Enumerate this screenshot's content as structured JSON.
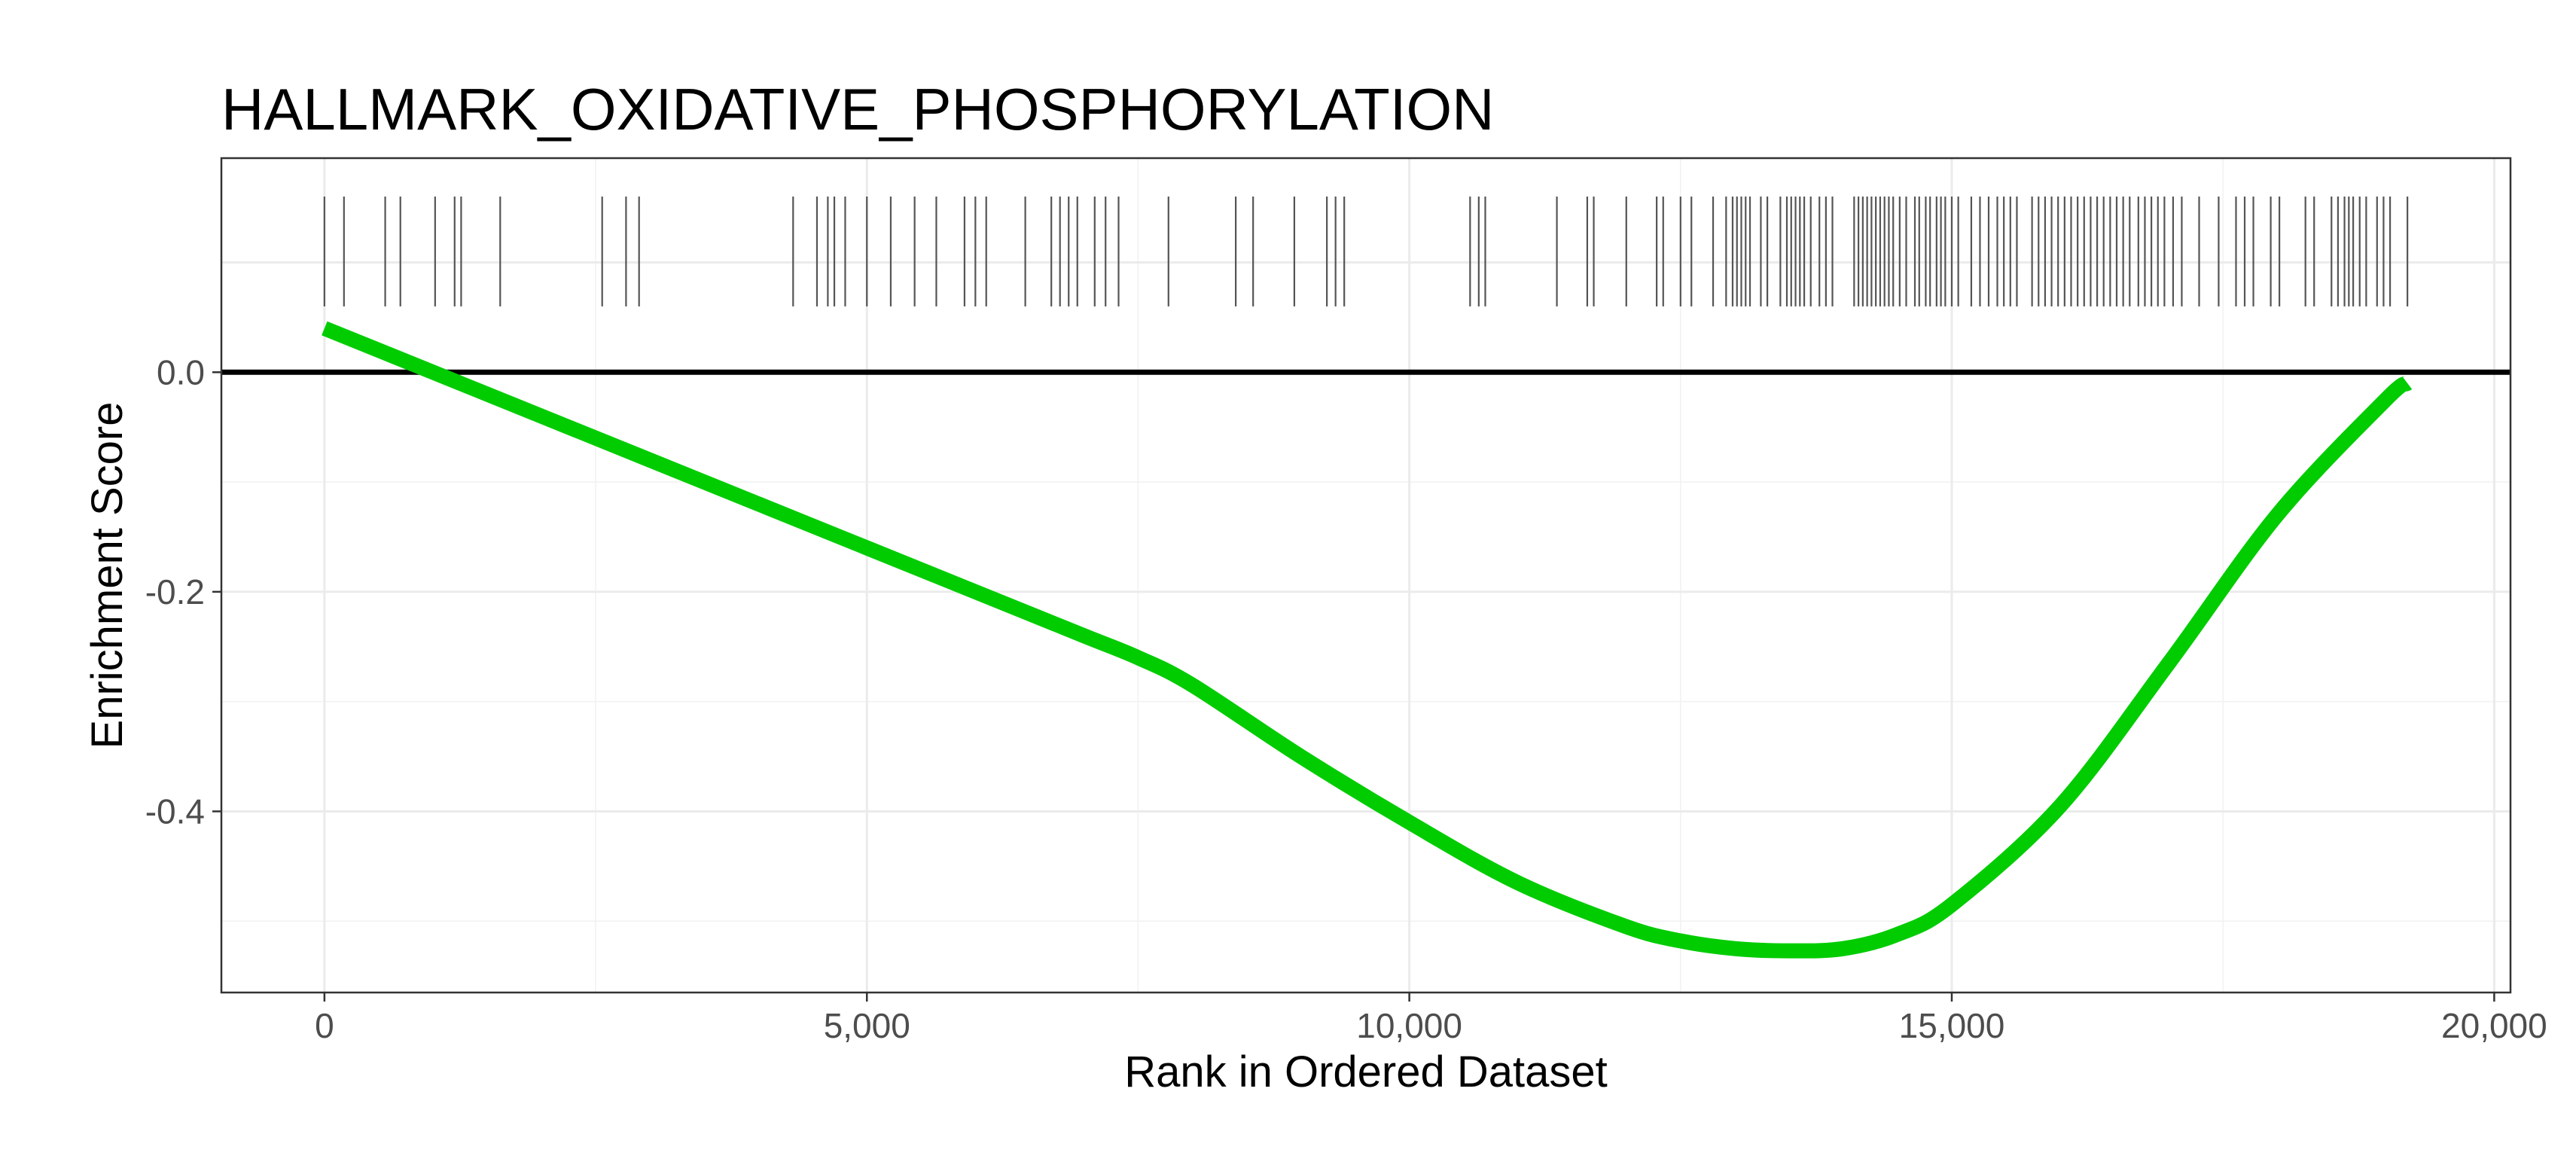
{
  "chart_data": {
    "type": "line",
    "title": "HALLMARK_OXIDATIVE_PHOSPHORYLATION",
    "xlabel": "Rank in Ordered Dataset",
    "ylabel": "Enrichment Score",
    "xlim": [
      -950,
      20150
    ],
    "ylim": [
      -0.565,
      0.195
    ],
    "x_major_ticks": [
      0,
      5000,
      10000,
      15000,
      20000
    ],
    "x_tick_labels": [
      "0",
      "5,000",
      "10,000",
      "15,000",
      "20,000"
    ],
    "x_minor_ticks": [
      2500,
      7500,
      12500,
      17500
    ],
    "y_major_ticks": [
      0.0,
      -0.2,
      -0.4
    ],
    "y_tick_labels": [
      "0.0",
      "-0.2",
      "-0.4"
    ],
    "y_minor_ticks": [
      0.1,
      -0.1,
      -0.3,
      -0.5
    ],
    "hit_band": [
      0.06,
      0.16
    ],
    "reference_line": {
      "y": 0.0,
      "color": "#000000"
    },
    "series": [
      {
        "name": "running enrichment score",
        "color": "#00cc00",
        "x": [
          0,
          1000,
          2000,
          3000,
          4000,
          5000,
          6000,
          7000,
          7500,
          8000,
          9000,
          10000,
          11000,
          12000,
          12500,
          13000,
          13500,
          14000,
          14500,
          15000,
          16000,
          17000,
          18000,
          19000,
          19200
        ],
        "y": [
          0.04,
          0.0,
          -0.04,
          -0.08,
          -0.12,
          -0.16,
          -0.2,
          -0.24,
          -0.26,
          -0.285,
          -0.35,
          -0.41,
          -0.465,
          -0.505,
          -0.518,
          -0.525,
          -0.527,
          -0.525,
          -0.512,
          -0.485,
          -0.395,
          -0.265,
          -0.13,
          -0.025,
          -0.01
        ]
      }
    ],
    "hit_positions": [
      0,
      180,
      560,
      700,
      1020,
      1200,
      1260,
      1620,
      2560,
      2780,
      2900,
      4320,
      4540,
      4640,
      4700,
      4800,
      5000,
      5220,
      5440,
      5640,
      5900,
      6000,
      6100,
      6460,
      6700,
      6780,
      6860,
      6940,
      7100,
      7200,
      7320,
      7780,
      8400,
      8560,
      8940,
      9240,
      9320,
      9400,
      10560,
      10640,
      10700,
      11360,
      11640,
      11700,
      12000,
      12280,
      12340,
      12500,
      12600,
      12800,
      12920,
      12980,
      13020,
      13060,
      13100,
      13140,
      13240,
      13300,
      13420,
      13480,
      13520,
      13560,
      13600,
      13640,
      13700,
      13780,
      13840,
      13900,
      14100,
      14140,
      14180,
      14220,
      14260,
      14300,
      14340,
      14380,
      14420,
      14460,
      14520,
      14580,
      14660,
      14700,
      14760,
      14800,
      14860,
      14900,
      14940,
      15000,
      15060,
      15180,
      15260,
      15340,
      15420,
      15480,
      15540,
      15600,
      15740,
      15800,
      15860,
      15920,
      15980,
      16040,
      16100,
      16160,
      16220,
      16280,
      16340,
      16400,
      16460,
      16520,
      16580,
      16640,
      16720,
      16780,
      16840,
      16900,
      16960,
      17040,
      17120,
      17280,
      17460,
      17620,
      17700,
      17780,
      17940,
      18020,
      18260,
      18340,
      18500,
      18560,
      18620,
      18660,
      18700,
      18760,
      18820,
      18920,
      18980,
      19040,
      19200
    ]
  }
}
